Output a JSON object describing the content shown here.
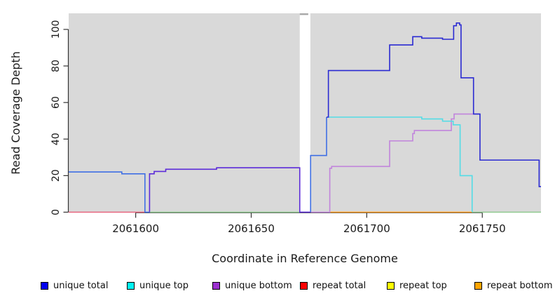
{
  "chart_data": {
    "type": "line",
    "title": "",
    "xlabel": "Coordinate in Reference Genome",
    "ylabel": "Read Coverage Depth",
    "xlim": [
      2061571,
      2061775.4
    ],
    "ylim": [
      0,
      108.8
    ],
    "x_ticks": [
      2061600,
      2061650,
      2061700,
      2061750
    ],
    "y_ticks": [
      0,
      20,
      40,
      60,
      80,
      100
    ],
    "grid": false,
    "plot_background": "#d9d9d9",
    "gap_region": {
      "x0": 2061671,
      "x1": 2061675.6,
      "color": "#ffffff",
      "cap_color": "#a8a8a8"
    },
    "legend_position": "bottom",
    "legend": [
      {
        "label": "unique total",
        "color": "#0000f0"
      },
      {
        "label": "unique top",
        "color": "#00f5f5"
      },
      {
        "label": "unique bottom",
        "color": "#9b30d0"
      },
      {
        "label": "repeat total",
        "color": "#ff0000"
      },
      {
        "label": "repeat top",
        "color": "#ffff00"
      },
      {
        "label": "repeat bottom",
        "color": "#ffa500"
      }
    ],
    "series": [
      {
        "name": "baseline-left-pink",
        "color": "#e8647e",
        "points": [
          [
            2061571,
            0
          ],
          [
            2061604,
            0
          ]
        ]
      },
      {
        "name": "baseline-mid-green",
        "color": "#8fc98f",
        "points": [
          [
            2061606,
            0
          ],
          [
            2061671,
            0
          ]
        ]
      },
      {
        "name": "baseline-right-green",
        "color": "#8fc98f",
        "points": [
          [
            2061745.6,
            0
          ],
          [
            2061775.4,
            0
          ]
        ]
      },
      {
        "name": "repeat-bottom-baseline",
        "color": "#ff9d1e",
        "points": [
          [
            2061684,
            0
          ],
          [
            2061745.6,
            0
          ]
        ]
      },
      {
        "name": "unique-bottom-right",
        "color": "#c184dc",
        "points": [
          [
            2061675.8,
            0
          ],
          [
            2061684,
            0
          ],
          [
            2061684,
            24
          ],
          [
            2061684.8,
            24
          ],
          [
            2061684.8,
            25
          ],
          [
            2061709.9,
            25
          ],
          [
            2061709.9,
            39
          ],
          [
            2061719.9,
            39
          ],
          [
            2061719.9,
            43
          ],
          [
            2061720.6,
            43
          ],
          [
            2061720.6,
            44.7
          ],
          [
            2061736.6,
            44.7
          ],
          [
            2061736.6,
            51
          ],
          [
            2061737.8,
            51
          ],
          [
            2061737.8,
            53.7
          ],
          [
            2061749,
            53.7
          ]
        ]
      },
      {
        "name": "unique-top",
        "color": "#52dce6",
        "points": [
          [
            2061683.4,
            52
          ],
          [
            2061723.8,
            52
          ],
          [
            2061723.8,
            51
          ],
          [
            2061732.8,
            51
          ],
          [
            2061732.8,
            49.8
          ],
          [
            2061737.4,
            49.8
          ],
          [
            2061737.4,
            47.8
          ],
          [
            2061740.4,
            47.8
          ],
          [
            2061740.4,
            20
          ],
          [
            2061745.6,
            20
          ],
          [
            2061745.6,
            0
          ]
        ]
      },
      {
        "name": "unique-total-left",
        "color": "#3f6fe4",
        "points": [
          [
            2061571,
            22
          ],
          [
            2061594,
            22
          ],
          [
            2061594,
            21
          ],
          [
            2061604,
            21
          ],
          [
            2061604,
            0
          ],
          [
            2061606,
            0
          ]
        ]
      },
      {
        "name": "unique-total-rise",
        "color": "#3f6fe4",
        "points": [
          [
            2061675.7,
            0
          ],
          [
            2061675.7,
            31
          ],
          [
            2061682.6,
            31
          ],
          [
            2061682.6,
            52
          ]
        ]
      },
      {
        "name": "unique-bottom-left",
        "color": "#5c2bd9",
        "points": [
          [
            2061606,
            0
          ],
          [
            2061606,
            21
          ],
          [
            2061608,
            21
          ],
          [
            2061608,
            22.3
          ],
          [
            2061613,
            22.3
          ],
          [
            2061613,
            23.5
          ],
          [
            2061635,
            23.5
          ],
          [
            2061635,
            24.3
          ],
          [
            2061671,
            24.3
          ],
          [
            2061671,
            0
          ],
          [
            2061675.6,
            0
          ]
        ]
      },
      {
        "name": "unique-total-right",
        "color": "#2a2ad2",
        "points": [
          [
            2061682.6,
            52
          ],
          [
            2061683.4,
            52
          ],
          [
            2061683.4,
            77.5
          ],
          [
            2061709.9,
            77.5
          ],
          [
            2061709.9,
            91.5
          ],
          [
            2061719.9,
            91.5
          ],
          [
            2061719.9,
            96
          ],
          [
            2061723.8,
            96
          ],
          [
            2061723.8,
            95.2
          ],
          [
            2061732.8,
            95.2
          ],
          [
            2061732.8,
            94.6
          ],
          [
            2061737.6,
            94.6
          ],
          [
            2061737.6,
            102
          ],
          [
            2061738.8,
            102
          ],
          [
            2061738.8,
            103.5
          ],
          [
            2061740.2,
            103.5
          ],
          [
            2061740.2,
            102.5
          ],
          [
            2061740.8,
            102.5
          ],
          [
            2061740.8,
            73.5
          ],
          [
            2061746.2,
            73.5
          ],
          [
            2061746.2,
            53.7
          ],
          [
            2061749,
            53.7
          ],
          [
            2061749,
            28.5
          ],
          [
            2061774.6,
            28.5
          ],
          [
            2061774.6,
            14
          ],
          [
            2061775.4,
            14
          ]
        ]
      }
    ]
  }
}
